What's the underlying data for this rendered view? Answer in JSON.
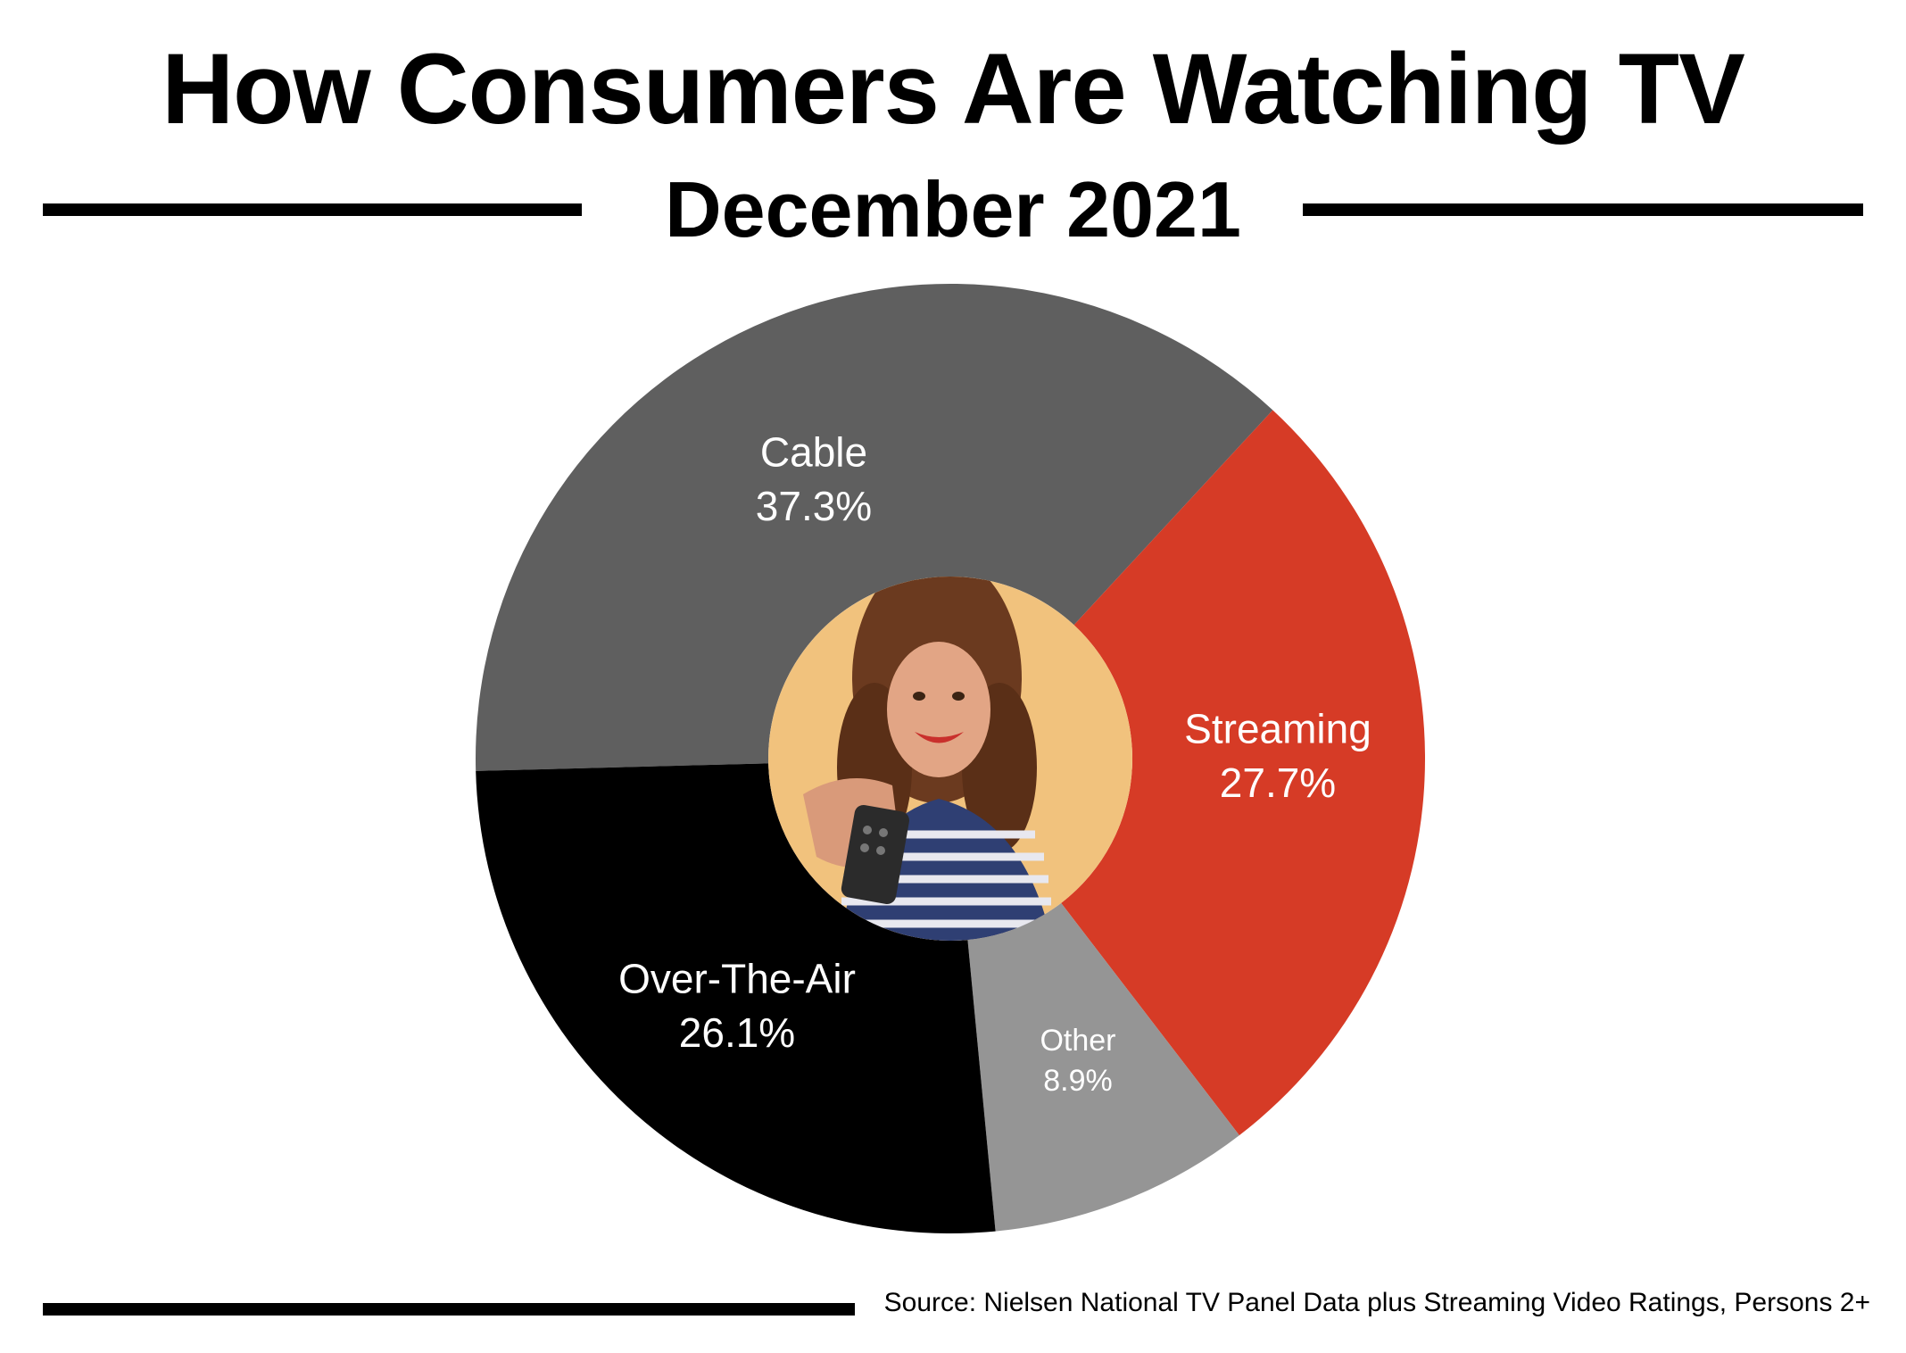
{
  "header": {
    "title": "How Consumers Are Watching TV",
    "subtitle": "December 2021"
  },
  "footer": {
    "source": "Source: Nielsen National TV Panel Data plus Streaming Video Ratings, Persons 2+"
  },
  "colors": {
    "cable": "#5f5f5f",
    "streaming": "#d63b26",
    "other": "#959595",
    "over_the_air": "#000000",
    "photo_background": "#f1c27d"
  },
  "center_image": "woman-with-tv-remote-photo",
  "chart_data": {
    "type": "pie",
    "variant": "donut",
    "categories": [
      "Cable",
      "Streaming",
      "Other",
      "Over-The-Air"
    ],
    "values": [
      37.3,
      27.7,
      8.9,
      26.1
    ],
    "value_labels": [
      "37.3%",
      "27.7%",
      "8.9%",
      "26.1%"
    ],
    "unit": "%",
    "title": "How Consumers Are Watching TV",
    "subtitle": "December 2021",
    "legend": "none (labels on slices)"
  }
}
